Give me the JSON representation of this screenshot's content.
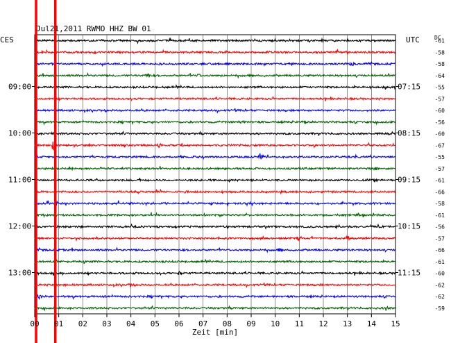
{
  "chart_data": {
    "type": "line",
    "title": "Jul21,2011   RWMO HHZ BW 01",
    "left_timezone": "CES",
    "right_timezone": "UTC",
    "dc_label": "DC",
    "xlabel": "Zeit [min]",
    "xlim": [
      0,
      15
    ],
    "x_ticks": [
      "00",
      "01",
      "02",
      "03",
      "04",
      "05",
      "06",
      "07",
      "08",
      "09",
      "10",
      "11",
      "12",
      "13",
      "14",
      "15"
    ],
    "left_time_labels": [
      {
        "trace": 4,
        "text": "09:00"
      },
      {
        "trace": 8,
        "text": "10:00"
      },
      {
        "trace": 12,
        "text": "11:00"
      },
      {
        "trace": 16,
        "text": "12:00"
      },
      {
        "trace": 20,
        "text": "13:00"
      }
    ],
    "right_time_labels": [
      {
        "trace": 4,
        "text": "07:15"
      },
      {
        "trace": 8,
        "text": "08:15"
      },
      {
        "trace": 12,
        "text": "09:15"
      },
      {
        "trace": 16,
        "text": "10:15"
      },
      {
        "trace": 20,
        "text": "11:15"
      }
    ],
    "colors": [
      "#000000",
      "#ff0000",
      "#0000ff",
      "#006400"
    ],
    "markers": [
      0.0,
      0.8
    ],
    "marker_color": "#ff0000",
    "series": [
      {
        "dc": "-61",
        "color_index": 0,
        "events": []
      },
      {
        "dc": "-58",
        "color_index": 1,
        "events": [
          {
            "x": 12.6,
            "amp": 3
          }
        ]
      },
      {
        "dc": "-58",
        "color_index": 2,
        "events": [
          {
            "x": 13.2,
            "amp": 3
          }
        ]
      },
      {
        "dc": "-64",
        "color_index": 3,
        "events": [
          {
            "x": 4.7,
            "amp": 4
          },
          {
            "x": 6.8,
            "amp": 2
          }
        ]
      },
      {
        "dc": "-55",
        "color_index": 0,
        "events": []
      },
      {
        "dc": "-57",
        "color_index": 1,
        "events": []
      },
      {
        "dc": "-60",
        "color_index": 2,
        "events": []
      },
      {
        "dc": "-56",
        "color_index": 3,
        "events": [
          {
            "x": 8.6,
            "amp": 2
          },
          {
            "x": 11.2,
            "amp": 2
          }
        ]
      },
      {
        "dc": "-60",
        "color_index": 0,
        "events": [
          {
            "x": 0.8,
            "amp": 5
          }
        ]
      },
      {
        "dc": "-67",
        "color_index": 1,
        "events": [
          {
            "x": 0.8,
            "amp": 9
          },
          {
            "x": 5.2,
            "amp": 2
          }
        ]
      },
      {
        "dc": "-55",
        "color_index": 2,
        "events": [
          {
            "x": 9.4,
            "amp": 6
          }
        ]
      },
      {
        "dc": "-57",
        "color_index": 3,
        "events": [
          {
            "x": 14.2,
            "amp": 2
          }
        ]
      },
      {
        "dc": "-61",
        "color_index": 0,
        "events": []
      },
      {
        "dc": "-66",
        "color_index": 1,
        "events": []
      },
      {
        "dc": "-58",
        "color_index": 2,
        "events": [
          {
            "x": 3.5,
            "amp": 4
          },
          {
            "x": 0.9,
            "amp": 2
          }
        ]
      },
      {
        "dc": "-61",
        "color_index": 3,
        "events": []
      },
      {
        "dc": "-56",
        "color_index": 0,
        "events": []
      },
      {
        "dc": "-57",
        "color_index": 1,
        "events": [
          {
            "x": 11.0,
            "amp": 3
          },
          {
            "x": 13.0,
            "amp": 3
          }
        ]
      },
      {
        "dc": "-66",
        "color_index": 2,
        "events": [
          {
            "x": 10.2,
            "amp": 2
          }
        ]
      },
      {
        "dc": "-61",
        "color_index": 3,
        "events": []
      },
      {
        "dc": "-60",
        "color_index": 0,
        "events": [
          {
            "x": 6.0,
            "amp": 2
          }
        ]
      },
      {
        "dc": "-62",
        "color_index": 1,
        "events": [
          {
            "x": 4.0,
            "amp": 2
          }
        ]
      },
      {
        "dc": "-62",
        "color_index": 2,
        "events": [
          {
            "x": 0.2,
            "amp": 3
          }
        ]
      },
      {
        "dc": "-59",
        "color_index": 3,
        "events": [
          {
            "x": 14.6,
            "amp": 3
          }
        ]
      }
    ]
  }
}
